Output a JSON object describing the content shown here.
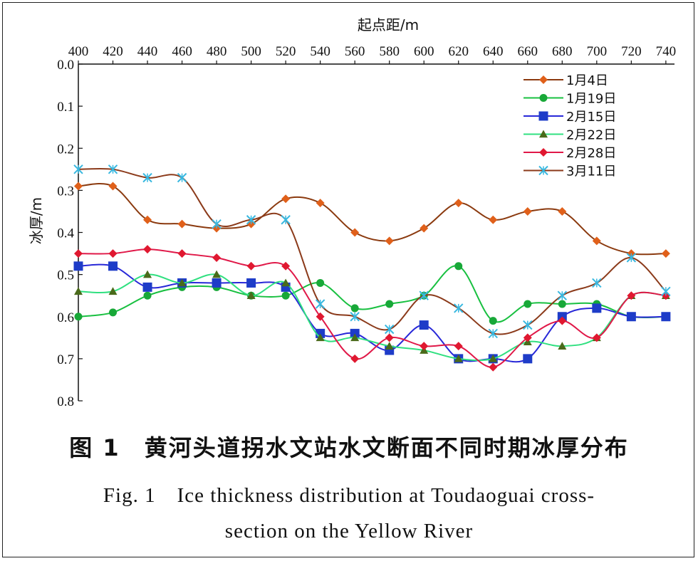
{
  "caption": {
    "cn": "图 1　黄河头道拐水文站水文断面不同时期冰厚分布",
    "en_line1": "Fig. 1　Ice thickness distribution at Toudaoguai cross-",
    "en_line2": "section on the Yellow River"
  },
  "chart_data": {
    "type": "line",
    "title": "",
    "xlabel": "起点距/m",
    "ylabel": "冰厚/m",
    "xlim": [
      400,
      745
    ],
    "ylim": [
      0.0,
      0.8
    ],
    "y_inverted": true,
    "x_axis_position": "top",
    "x_ticks": [
      400,
      420,
      440,
      460,
      480,
      500,
      520,
      540,
      560,
      580,
      600,
      620,
      640,
      660,
      680,
      700,
      720,
      740
    ],
    "y_ticks": [
      "0.0",
      "0.1",
      "0.2",
      "0.3",
      "0.4",
      "0.5",
      "0.6",
      "0.7",
      "0.8"
    ],
    "legend_position": "top-right",
    "grid": false,
    "series": [
      {
        "name": "1月4日",
        "color": "#8B3A0F",
        "marker": "diamond",
        "marker_color": "#E0601A",
        "x": [
          400,
          420,
          440,
          460,
          480,
          500,
          520,
          540,
          560,
          580,
          600,
          620,
          640,
          660,
          680,
          700,
          720,
          740
        ],
        "y": [
          0.29,
          0.29,
          0.37,
          0.38,
          0.39,
          0.38,
          0.32,
          0.33,
          0.4,
          0.42,
          0.39,
          0.33,
          0.37,
          0.35,
          0.35,
          0.42,
          0.45,
          0.45
        ]
      },
      {
        "name": "1月19日",
        "color": "#18C040",
        "marker": "circle",
        "marker_color": "#18A838",
        "x": [
          400,
          420,
          440,
          460,
          480,
          500,
          520,
          540,
          560,
          580,
          600,
          620,
          640,
          660,
          680,
          700,
          720,
          740
        ],
        "y": [
          0.6,
          0.59,
          0.55,
          0.53,
          0.53,
          0.55,
          0.55,
          0.52,
          0.58,
          0.57,
          0.55,
          0.48,
          0.61,
          0.57,
          0.57,
          0.57,
          0.6,
          0.6
        ]
      },
      {
        "name": "2月15日",
        "color": "#2828D8",
        "marker": "square",
        "marker_color": "#1E3CC8",
        "x": [
          400,
          420,
          440,
          460,
          480,
          500,
          520,
          540,
          560,
          580,
          600,
          620,
          640,
          660,
          680,
          700,
          720,
          740
        ],
        "y": [
          0.48,
          0.48,
          0.53,
          0.52,
          0.52,
          0.52,
          0.53,
          0.64,
          0.64,
          0.68,
          0.62,
          0.7,
          0.7,
          0.7,
          0.6,
          0.58,
          0.6,
          0.6
        ]
      },
      {
        "name": "2月22日",
        "color": "#30E080",
        "marker": "triangle",
        "marker_color": "#4A6A1A",
        "x": [
          400,
          420,
          440,
          460,
          480,
          500,
          520,
          540,
          560,
          580,
          600,
          620,
          640,
          660,
          680,
          700,
          720,
          740
        ],
        "y": [
          0.54,
          0.54,
          0.5,
          0.52,
          0.5,
          0.55,
          0.52,
          0.65,
          0.65,
          0.67,
          0.68,
          0.7,
          0.7,
          0.66,
          0.67,
          0.65,
          0.55,
          0.55
        ]
      },
      {
        "name": "2月28日",
        "color": "#E01848",
        "marker": "diamond",
        "marker_color": "#E01830",
        "x": [
          400,
          420,
          440,
          460,
          480,
          500,
          520,
          540,
          560,
          580,
          600,
          620,
          640,
          660,
          680,
          700,
          720,
          740
        ],
        "y": [
          0.45,
          0.45,
          0.44,
          0.45,
          0.46,
          0.48,
          0.48,
          0.6,
          0.7,
          0.65,
          0.67,
          0.67,
          0.72,
          0.65,
          0.61,
          0.65,
          0.55,
          0.55
        ]
      },
      {
        "name": "3月11日",
        "color": "#8B3A1A",
        "marker": "x",
        "marker_color": "#38B8E0",
        "x": [
          400,
          420,
          440,
          460,
          480,
          500,
          520,
          540,
          560,
          580,
          600,
          620,
          640,
          660,
          680,
          700,
          720,
          740
        ],
        "y": [
          0.25,
          0.25,
          0.27,
          0.27,
          0.38,
          0.37,
          0.37,
          0.57,
          0.6,
          0.63,
          0.55,
          0.58,
          0.64,
          0.62,
          0.55,
          0.52,
          0.46,
          0.54
        ]
      }
    ]
  }
}
